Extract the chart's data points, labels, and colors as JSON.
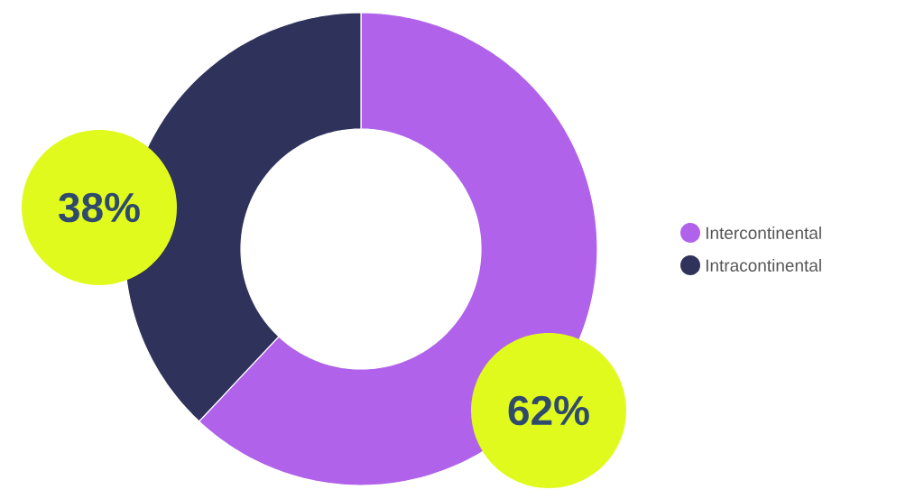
{
  "chart_data": {
    "type": "donut",
    "categories": [
      "Intercontinental",
      "Intracontinental"
    ],
    "values": [
      62,
      38
    ],
    "colors": [
      "#b062ea",
      "#2f325a"
    ],
    "value_labels": [
      "62%",
      "38%"
    ],
    "legend": "right"
  }
}
